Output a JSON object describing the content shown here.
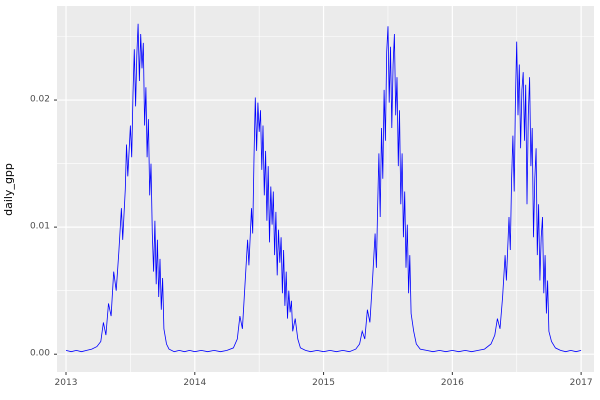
{
  "figure": {
    "background": "#FFFFFF"
  },
  "panel": {
    "background": "#EBEBEB",
    "grid_major_color": "#FFFFFF",
    "grid_minor_color": "#FFFFFF",
    "tick_mark_color": "#333333",
    "axis_text_color": "#4D4D4D"
  },
  "chart_data": {
    "type": "line",
    "title": "",
    "xlabel": "",
    "ylabel": "daily_gpp",
    "legend": "none",
    "grid": "on",
    "line_color": "#0000FF",
    "xlim": [
      2012.93,
      2017.1
    ],
    "ylim": [
      -0.0014,
      0.0274
    ],
    "x_ticks": {
      "values": [
        2013,
        2014,
        2015,
        2016,
        2017
      ],
      "labels": [
        "2013",
        "2014",
        "2015",
        "2016",
        "2017"
      ]
    },
    "x_minor": [
      2013.5,
      2014.5,
      2015.5,
      2016.5
    ],
    "y_ticks": {
      "values": [
        0.0,
        0.01,
        0.02
      ],
      "labels": [
        "0.00",
        "0.01",
        "0.02"
      ]
    },
    "y_minor": [
      0.005,
      0.015,
      0.025
    ],
    "series": [
      {
        "name": "daily_gpp",
        "points": [
          [
            2013.0,
            0.0003
          ],
          [
            2013.04,
            0.0002
          ],
          [
            2013.08,
            0.0003
          ],
          [
            2013.12,
            0.0002
          ],
          [
            2013.16,
            0.0003
          ],
          [
            2013.2,
            0.0004
          ],
          [
            2013.24,
            0.0006
          ],
          [
            2013.27,
            0.001
          ],
          [
            2013.29,
            0.0025
          ],
          [
            2013.31,
            0.0015
          ],
          [
            2013.33,
            0.004
          ],
          [
            2013.35,
            0.003
          ],
          [
            2013.37,
            0.0065
          ],
          [
            2013.39,
            0.005
          ],
          [
            2013.41,
            0.008
          ],
          [
            2013.43,
            0.0115
          ],
          [
            2013.44,
            0.009
          ],
          [
            2013.46,
            0.013
          ],
          [
            2013.47,
            0.0165
          ],
          [
            2013.48,
            0.014
          ],
          [
            2013.5,
            0.018
          ],
          [
            2013.51,
            0.0155
          ],
          [
            2013.52,
            0.0205
          ],
          [
            2013.53,
            0.024
          ],
          [
            2013.54,
            0.0195
          ],
          [
            2013.55,
            0.0235
          ],
          [
            2013.56,
            0.026
          ],
          [
            2013.57,
            0.0215
          ],
          [
            2013.58,
            0.0252
          ],
          [
            2013.59,
            0.0225
          ],
          [
            2013.6,
            0.0245
          ],
          [
            2013.61,
            0.018
          ],
          [
            2013.62,
            0.021
          ],
          [
            2013.63,
            0.0155
          ],
          [
            2013.64,
            0.0185
          ],
          [
            2013.65,
            0.0125
          ],
          [
            2013.66,
            0.015
          ],
          [
            2013.67,
            0.0095
          ],
          [
            2013.68,
            0.0065
          ],
          [
            2013.69,
            0.0105
          ],
          [
            2013.7,
            0.0055
          ],
          [
            2013.71,
            0.009
          ],
          [
            2013.72,
            0.0045
          ],
          [
            2013.73,
            0.0075
          ],
          [
            2013.74,
            0.0035
          ],
          [
            2013.75,
            0.006
          ],
          [
            2013.76,
            0.002
          ],
          [
            2013.78,
            0.0008
          ],
          [
            2013.8,
            0.0004
          ],
          [
            2013.84,
            0.0002
          ],
          [
            2013.88,
            0.0003
          ],
          [
            2013.92,
            0.0002
          ],
          [
            2013.96,
            0.0003
          ],
          [
            2014.0,
            0.0002
          ],
          [
            2014.05,
            0.0003
          ],
          [
            2014.1,
            0.0002
          ],
          [
            2014.15,
            0.0003
          ],
          [
            2014.2,
            0.0002
          ],
          [
            2014.25,
            0.0003
          ],
          [
            2014.3,
            0.0005
          ],
          [
            2014.33,
            0.0012
          ],
          [
            2014.35,
            0.003
          ],
          [
            2014.37,
            0.002
          ],
          [
            2014.39,
            0.0055
          ],
          [
            2014.41,
            0.009
          ],
          [
            2014.42,
            0.007
          ],
          [
            2014.44,
            0.0115
          ],
          [
            2014.45,
            0.0095
          ],
          [
            2014.46,
            0.0155
          ],
          [
            2014.47,
            0.0202
          ],
          [
            2014.48,
            0.016
          ],
          [
            2014.49,
            0.0198
          ],
          [
            2014.5,
            0.0175
          ],
          [
            2014.51,
            0.0192
          ],
          [
            2014.52,
            0.0145
          ],
          [
            2014.53,
            0.018
          ],
          [
            2014.54,
            0.0125
          ],
          [
            2014.55,
            0.016
          ],
          [
            2014.56,
            0.0105
          ],
          [
            2014.57,
            0.0148
          ],
          [
            2014.58,
            0.0088
          ],
          [
            2014.59,
            0.0132
          ],
          [
            2014.6,
            0.0102
          ],
          [
            2014.61,
            0.0128
          ],
          [
            2014.62,
            0.0078
          ],
          [
            2014.63,
            0.0112
          ],
          [
            2014.64,
            0.0062
          ],
          [
            2014.65,
            0.0098
          ],
          [
            2014.66,
            0.0072
          ],
          [
            2014.67,
            0.0092
          ],
          [
            2014.68,
            0.0048
          ],
          [
            2014.69,
            0.0082
          ],
          [
            2014.7,
            0.0038
          ],
          [
            2014.71,
            0.0065
          ],
          [
            2014.72,
            0.0028
          ],
          [
            2014.73,
            0.005
          ],
          [
            2014.74,
            0.0033
          ],
          [
            2014.75,
            0.0042
          ],
          [
            2014.76,
            0.0018
          ],
          [
            2014.78,
            0.0028
          ],
          [
            2014.8,
            0.0012
          ],
          [
            2014.82,
            0.0005
          ],
          [
            2014.86,
            0.0003
          ],
          [
            2014.9,
            0.0002
          ],
          [
            2014.95,
            0.0003
          ],
          [
            2015.0,
            0.0002
          ],
          [
            2015.05,
            0.0003
          ],
          [
            2015.1,
            0.0002
          ],
          [
            2015.15,
            0.0003
          ],
          [
            2015.2,
            0.0002
          ],
          [
            2015.25,
            0.0004
          ],
          [
            2015.28,
            0.0008
          ],
          [
            2015.3,
            0.0018
          ],
          [
            2015.32,
            0.0012
          ],
          [
            2015.34,
            0.0035
          ],
          [
            2015.36,
            0.0025
          ],
          [
            2015.38,
            0.0058
          ],
          [
            2015.4,
            0.0095
          ],
          [
            2015.41,
            0.0068
          ],
          [
            2015.42,
            0.0118
          ],
          [
            2015.43,
            0.0158
          ],
          [
            2015.44,
            0.0108
          ],
          [
            2015.45,
            0.0178
          ],
          [
            2015.46,
            0.0138
          ],
          [
            2015.47,
            0.0208
          ],
          [
            2015.48,
            0.0168
          ],
          [
            2015.49,
            0.0238
          ],
          [
            2015.5,
            0.0258
          ],
          [
            2015.51,
            0.0198
          ],
          [
            2015.52,
            0.0242
          ],
          [
            2015.53,
            0.0178
          ],
          [
            2015.54,
            0.0228
          ],
          [
            2015.55,
            0.0252
          ],
          [
            2015.56,
            0.0188
          ],
          [
            2015.57,
            0.0218
          ],
          [
            2015.58,
            0.0148
          ],
          [
            2015.59,
            0.0192
          ],
          [
            2015.6,
            0.0118
          ],
          [
            2015.61,
            0.0158
          ],
          [
            2015.62,
            0.0092
          ],
          [
            2015.63,
            0.0128
          ],
          [
            2015.64,
            0.0068
          ],
          [
            2015.65,
            0.0102
          ],
          [
            2015.66,
            0.0048
          ],
          [
            2015.67,
            0.0078
          ],
          [
            2015.68,
            0.0032
          ],
          [
            2015.7,
            0.0018
          ],
          [
            2015.72,
            0.0008
          ],
          [
            2015.75,
            0.0004
          ],
          [
            2015.8,
            0.0003
          ],
          [
            2015.85,
            0.0002
          ],
          [
            2015.9,
            0.0003
          ],
          [
            2015.95,
            0.0002
          ],
          [
            2016.0,
            0.0003
          ],
          [
            2016.05,
            0.0002
          ],
          [
            2016.1,
            0.0003
          ],
          [
            2016.15,
            0.0002
          ],
          [
            2016.2,
            0.0003
          ],
          [
            2016.25,
            0.0004
          ],
          [
            2016.3,
            0.0008
          ],
          [
            2016.33,
            0.0015
          ],
          [
            2016.35,
            0.0028
          ],
          [
            2016.37,
            0.002
          ],
          [
            2016.39,
            0.0045
          ],
          [
            2016.41,
            0.0078
          ],
          [
            2016.42,
            0.0058
          ],
          [
            2016.44,
            0.0108
          ],
          [
            2016.45,
            0.0082
          ],
          [
            2016.46,
            0.0138
          ],
          [
            2016.47,
            0.0172
          ],
          [
            2016.48,
            0.0128
          ],
          [
            2016.49,
            0.0198
          ],
          [
            2016.5,
            0.0246
          ],
          [
            2016.51,
            0.0188
          ],
          [
            2016.52,
            0.0228
          ],
          [
            2016.53,
            0.0162
          ],
          [
            2016.54,
            0.0208
          ],
          [
            2016.55,
            0.0222
          ],
          [
            2016.56,
            0.0168
          ],
          [
            2016.57,
            0.0212
          ],
          [
            2016.58,
            0.0118
          ],
          [
            2016.59,
            0.0188
          ],
          [
            2016.6,
            0.0218
          ],
          [
            2016.61,
            0.0148
          ],
          [
            2016.62,
            0.0178
          ],
          [
            2016.63,
            0.0092
          ],
          [
            2016.64,
            0.0138
          ],
          [
            2016.65,
            0.0162
          ],
          [
            2016.66,
            0.0078
          ],
          [
            2016.67,
            0.0118
          ],
          [
            2016.68,
            0.0058
          ],
          [
            2016.69,
            0.0092
          ],
          [
            2016.7,
            0.0108
          ],
          [
            2016.71,
            0.0048
          ],
          [
            2016.72,
            0.0078
          ],
          [
            2016.73,
            0.0032
          ],
          [
            2016.74,
            0.0058
          ],
          [
            2016.75,
            0.0018
          ],
          [
            2016.77,
            0.001
          ],
          [
            2016.8,
            0.0005
          ],
          [
            2016.84,
            0.0003
          ],
          [
            2016.88,
            0.0002
          ],
          [
            2016.92,
            0.0003
          ],
          [
            2016.96,
            0.0002
          ],
          [
            2017.0,
            0.0003
          ]
        ]
      }
    ]
  }
}
